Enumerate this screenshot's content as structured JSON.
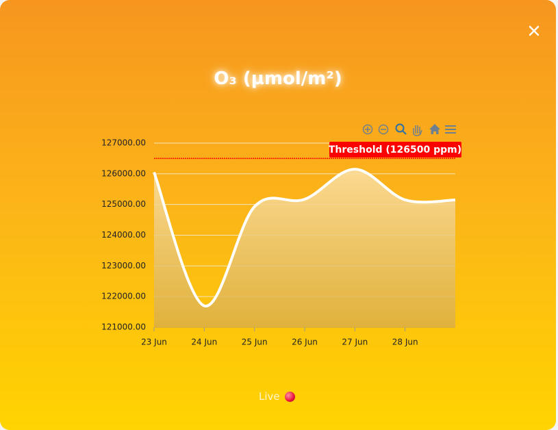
{
  "title": "O₃ (µmol/m²)",
  "chart_data": {
    "type": "line",
    "categories": [
      "23 Jun",
      "24 Jun",
      "25 Jun",
      "26 Jun",
      "27 Jun",
      "28 Jun",
      null
    ],
    "values": [
      126050,
      121700,
      124930,
      125170,
      126150,
      125150,
      125150
    ],
    "color": "#ffffff",
    "ylim": [
      121000,
      127000
    ],
    "yticks": [
      {
        "value": 121000,
        "label": "121000.00"
      },
      {
        "value": 122000,
        "label": "122000.00"
      },
      {
        "value": 123000,
        "label": "123000.00"
      },
      {
        "value": 124000,
        "label": "124000.00"
      },
      {
        "value": 125000,
        "label": "125000.00"
      },
      {
        "value": 126000,
        "label": "126000.00"
      },
      {
        "value": 127000,
        "label": "127000.00"
      }
    ],
    "grid": true,
    "threshold": {
      "value": 126500,
      "label": "Threshold (126500 ppm)",
      "color": "#ff0000"
    }
  },
  "footer": "Live"
}
